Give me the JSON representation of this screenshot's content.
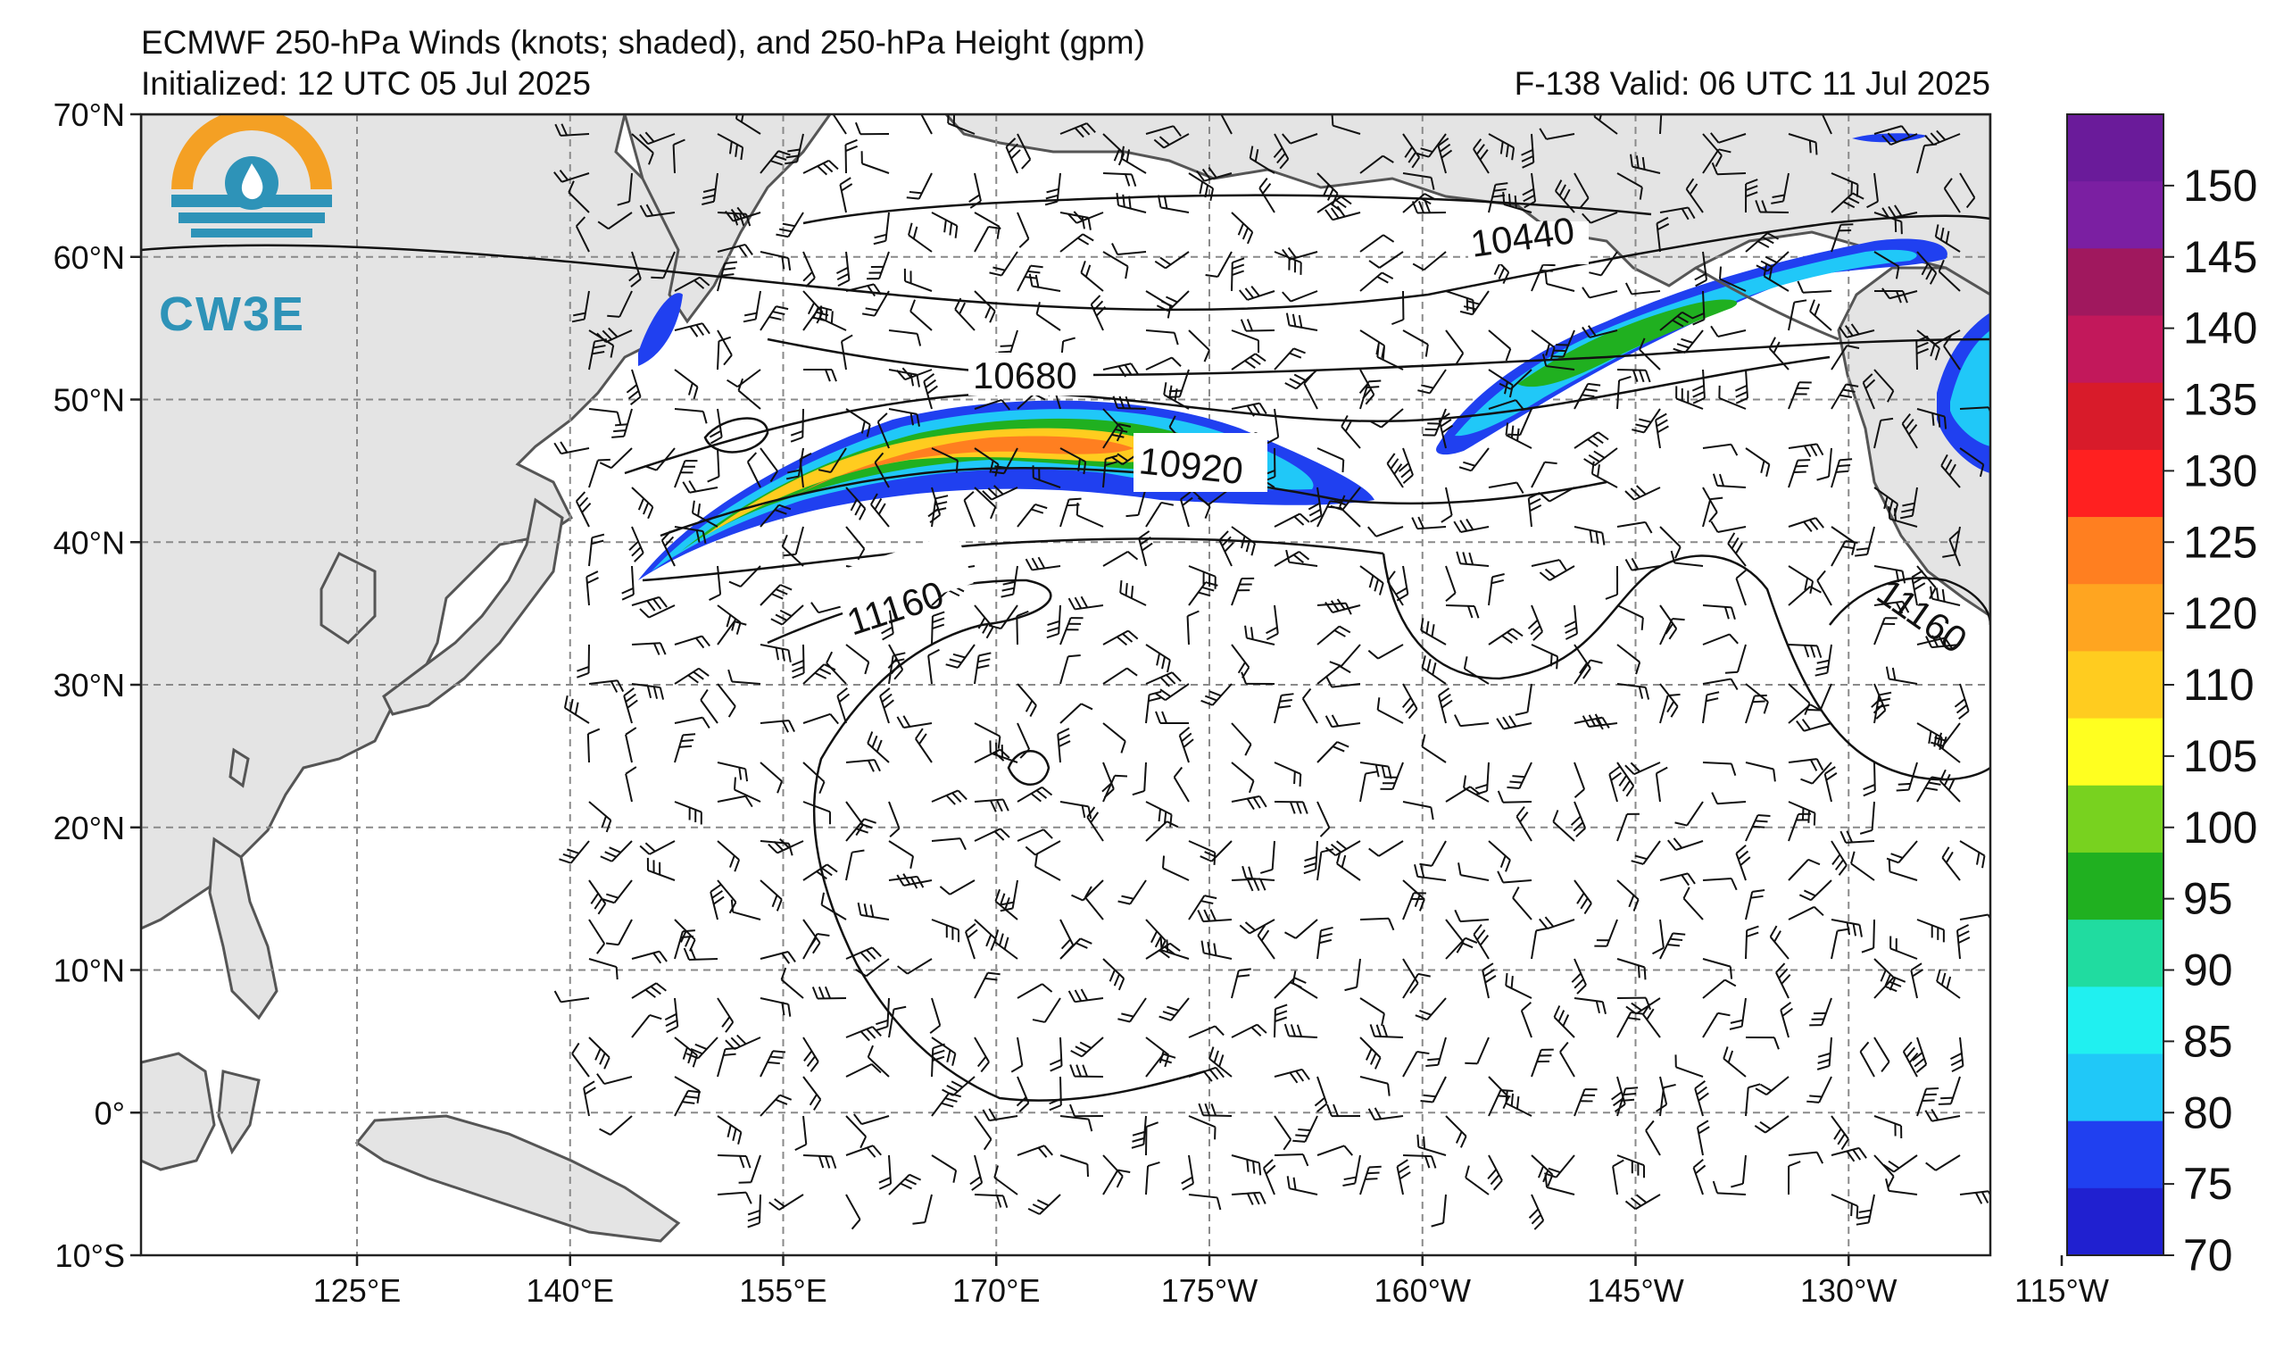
{
  "header": {
    "title": "ECMWF 250-hPa Winds (knots; shaded), and 250-hPa Height (gpm)",
    "initialized": "Initialized: 12 UTC 05 Jul 2025",
    "valid": "F-138  Valid: 06 UTC 11 Jul 2025"
  },
  "logo": {
    "text": "CW3E"
  },
  "axes": {
    "lat_labels": [
      "70°N",
      "60°N",
      "50°N",
      "40°N",
      "30°N",
      "20°N",
      "10°N",
      "0°",
      "10°S"
    ],
    "lon_labels": [
      "125°E",
      "140°E",
      "155°E",
      "170°E",
      "175°W",
      "160°W",
      "145°W",
      "130°W",
      "115°W"
    ]
  },
  "colorbar": {
    "ticks": [
      "150",
      "145",
      "140",
      "135",
      "130",
      "125",
      "120",
      "110",
      "105",
      "100",
      "95",
      "90",
      "85",
      "80",
      "75",
      "70"
    ],
    "colors": [
      "#6a1b9a",
      "#7b1fa2",
      "#a0185e",
      "#c2185b",
      "#d81b2a",
      "#ff2020",
      "#ff7f20",
      "#ffa520",
      "#ffcc1f",
      "#ffff20",
      "#78d21f",
      "#20b020",
      "#20dca0",
      "#20f0f0",
      "#20c8f8",
      "#2040f0",
      "#2020d0"
    ]
  },
  "contour_labels": [
    "10440",
    "10680",
    "10920",
    "11160",
    "11160"
  ],
  "map": {
    "land_color": "#e4e4e4",
    "coast_color": "#555555",
    "grid_color": "#8a8a8a"
  }
}
